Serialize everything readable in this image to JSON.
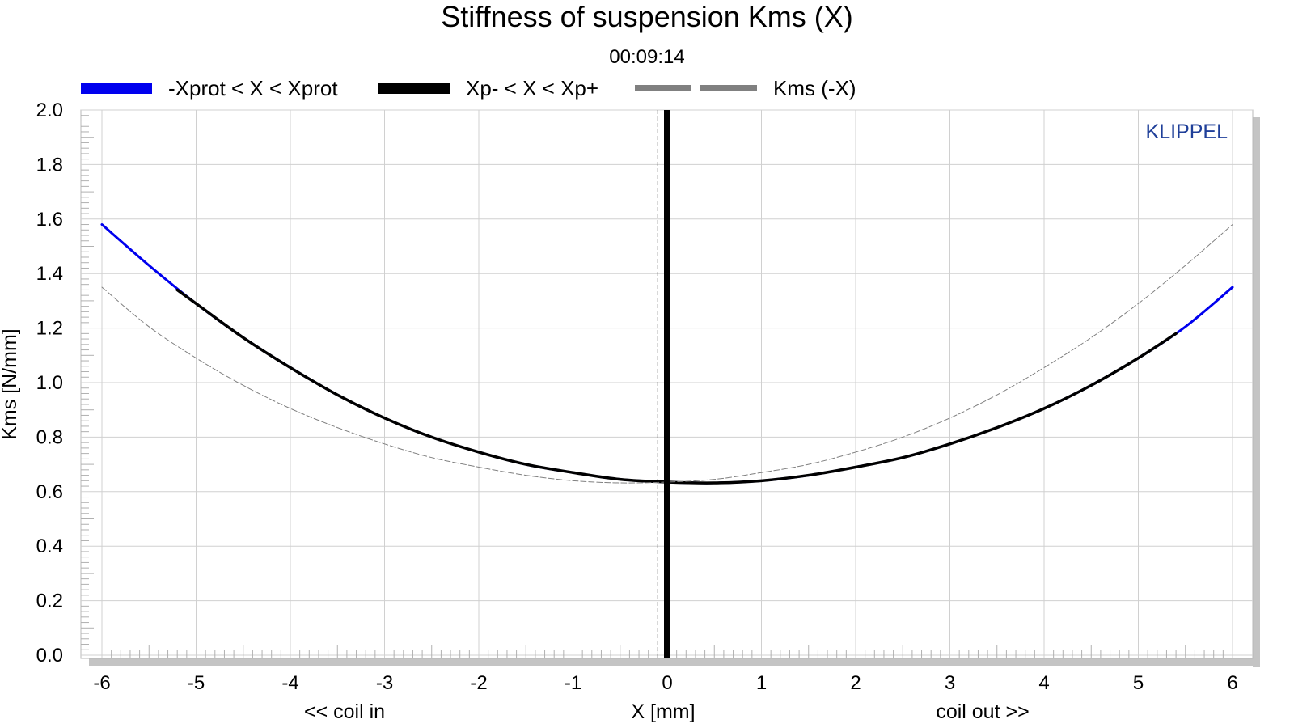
{
  "chart_data": {
    "type": "line",
    "title": "Stiffness of suspension Kms (X)",
    "subtitle": "00:09:14",
    "xlabel": "X [mm]",
    "xlabel_left": "<< coil in",
    "xlabel_right": "coil out >>",
    "ylabel": "Kms [N/mm]",
    "brand": "KLIPPEL",
    "xlim": [
      -6,
      6
    ],
    "ylim": [
      0,
      2
    ],
    "xticks": [
      -6,
      -5,
      -4,
      -3,
      -2,
      -1,
      0,
      1,
      2,
      3,
      4,
      5,
      6
    ],
    "yticks": [
      "0.0",
      "0.2",
      "0.4",
      "0.6",
      "0.8",
      "1.0",
      "1.2",
      "1.4",
      "1.6",
      "1.8",
      "2.0"
    ],
    "grid": true,
    "legend": [
      {
        "name": "-Xprot < X < Xprot",
        "color": "#0000ee",
        "style": "solid"
      },
      {
        "name": "Xp- < X < Xp+",
        "color": "#000000",
        "style": "solid"
      },
      {
        "name": "Kms (-X)",
        "color": "#808080",
        "style": "dashed"
      }
    ],
    "series": [
      {
        "name": "-Xprot < X < Xprot",
        "color": "#0000ee",
        "x": [
          -6,
          -5.5,
          -5,
          -4.5,
          -4,
          -3.5,
          -3,
          -2.5,
          -2,
          -1.5,
          -1,
          -0.5,
          0,
          0.5,
          1,
          1.5,
          2,
          2.5,
          3,
          3.5,
          4,
          4.5,
          5,
          5.5,
          6
        ],
        "y": [
          1.58,
          1.43,
          1.29,
          1.165,
          1.055,
          0.955,
          0.87,
          0.8,
          0.745,
          0.7,
          0.67,
          0.645,
          0.635,
          0.632,
          0.64,
          0.66,
          0.69,
          0.725,
          0.775,
          0.835,
          0.905,
          0.99,
          1.09,
          1.205,
          1.35
        ]
      },
      {
        "name": "Xp- < X < Xp+",
        "color": "#000000",
        "x": [
          -5.2,
          -5,
          -4.5,
          -4,
          -3.5,
          -3,
          -2.5,
          -2,
          -1.5,
          -1,
          -0.5,
          0,
          0.5,
          1,
          1.5,
          2,
          2.5,
          3,
          3.5,
          4,
          4.5,
          5,
          5.4
        ],
        "y": [
          1.34,
          1.29,
          1.165,
          1.055,
          0.955,
          0.87,
          0.8,
          0.745,
          0.7,
          0.67,
          0.645,
          0.635,
          0.632,
          0.64,
          0.66,
          0.69,
          0.725,
          0.775,
          0.835,
          0.905,
          0.99,
          1.09,
          1.18
        ]
      },
      {
        "name": "Kms (-X)",
        "color": "#808080",
        "x": [
          -6,
          -5.5,
          -5,
          -4.5,
          -4,
          -3.5,
          -3,
          -2.5,
          -2,
          -1.5,
          -1,
          -0.5,
          0,
          0.5,
          1,
          1.5,
          2,
          2.5,
          3,
          3.5,
          4,
          4.5,
          5,
          5.5,
          6
        ],
        "y": [
          1.35,
          1.205,
          1.09,
          0.99,
          0.905,
          0.835,
          0.775,
          0.725,
          0.69,
          0.66,
          0.64,
          0.632,
          0.635,
          0.645,
          0.67,
          0.7,
          0.745,
          0.8,
          0.87,
          0.955,
          1.055,
          1.165,
          1.29,
          1.43,
          1.58
        ]
      }
    ],
    "vertical_lines": [
      {
        "name": "rest-position",
        "x": 0.0,
        "color": "#000000",
        "style": "solid"
      },
      {
        "name": "offset-marker",
        "x": -0.1,
        "color": "#000000",
        "style": "dashed"
      }
    ]
  }
}
